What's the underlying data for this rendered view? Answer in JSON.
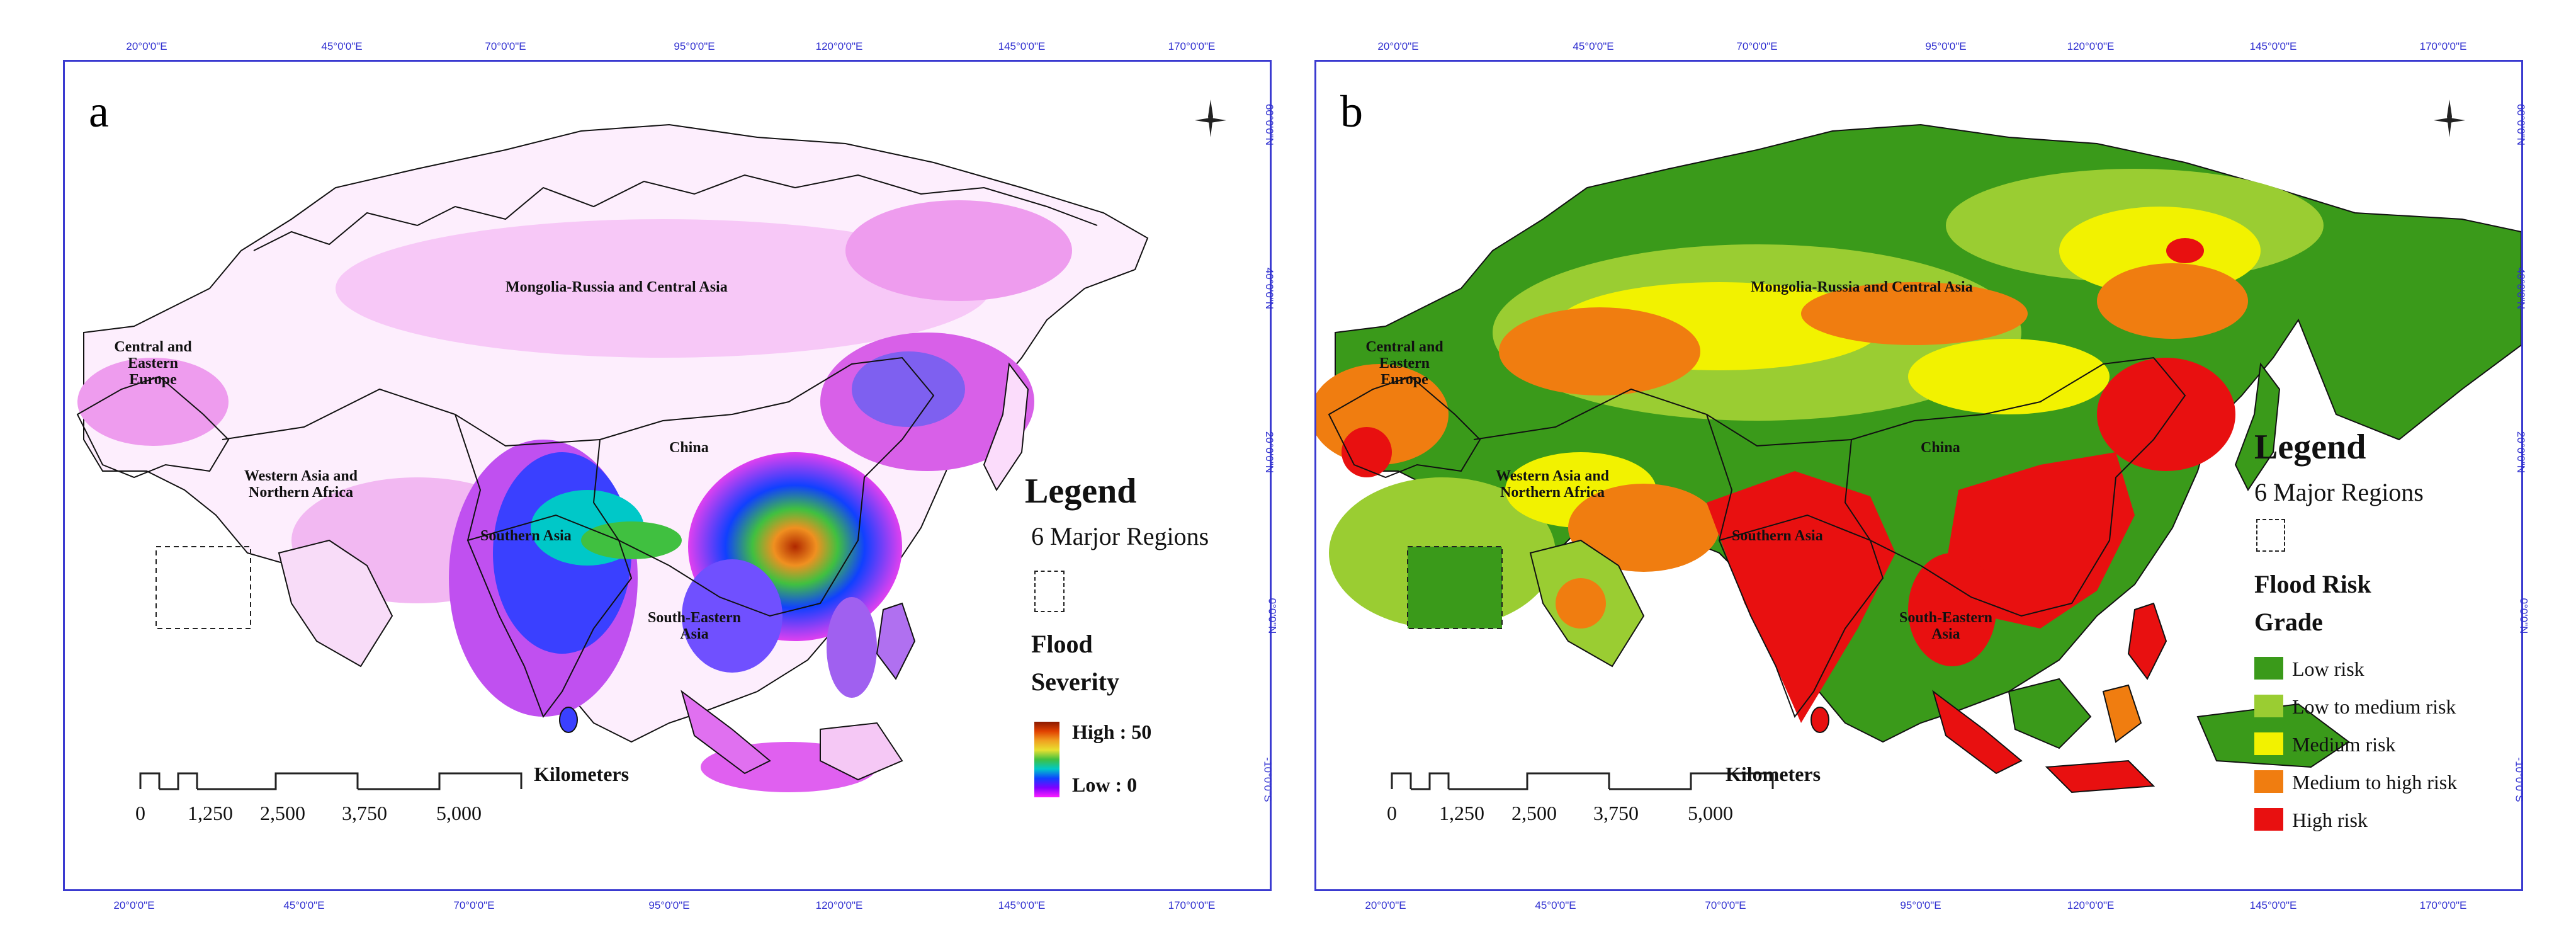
{
  "panels": {
    "a": {
      "letter": "a",
      "legend": {
        "title": "Legend",
        "regions_label": "6 Marjor Regions",
        "layer_title_1": "Flood",
        "layer_title_2": "Severity",
        "high": "High : 50",
        "low": "Low : 0"
      }
    },
    "b": {
      "letter": "b",
      "legend": {
        "title": "Legend",
        "regions_label": "6 Major Regions",
        "layer_title_1": "Flood Risk",
        "layer_title_2": "Grade",
        "classes": [
          {
            "label": "Low risk",
            "color": "#3a9a1a"
          },
          {
            "label": "Low to medium risk",
            "color": "#9acd32"
          },
          {
            "label": "Medium risk",
            "color": "#f2f200"
          },
          {
            "label": "Medium to high risk",
            "color": "#f07d10"
          },
          {
            "label": "High risk",
            "color": "#e81010"
          }
        ]
      }
    }
  },
  "regions": {
    "mongolia_russia": "Mongolia-Russia and Central Asia",
    "central_europe": "Central and Eastern Europe",
    "western_asia": "Western Asia and Northern Africa",
    "china": "China",
    "southern_asia": "Southern Asia",
    "southeastern_asia": "South-Eastern Asia"
  },
  "scale_bar": {
    "unit": "Kilometers",
    "ticks": [
      "0",
      "1,250",
      "2,500",
      "3,750",
      "5,000"
    ]
  },
  "coords": {
    "top": [
      "20°0'0\"E",
      "45°0'0\"E",
      "70°0'0\"E",
      "95°0'0\"E",
      "120°0'0\"E",
      "145°0'0\"E",
      "170°0'0\"E"
    ],
    "bottom": [
      "20°0'0\"E",
      "45°0'0\"E",
      "70°0'0\"E",
      "95°0'0\"E",
      "120°0'0\"E",
      "145°0'0\"E",
      "170°0'0\"E"
    ],
    "lat": [
      "60°0'0\"N",
      "40°0'0\"N",
      "20°0'0\"N",
      "0°0'0\"N",
      "-10°0'0\"S"
    ]
  },
  "colors": {
    "severity_low": "#ff20ff",
    "severity_mid": "#3a40ff",
    "severity_high": "#8b1a00",
    "frame": "#3a3ad0",
    "graticule_label": "#2f2fd0"
  }
}
